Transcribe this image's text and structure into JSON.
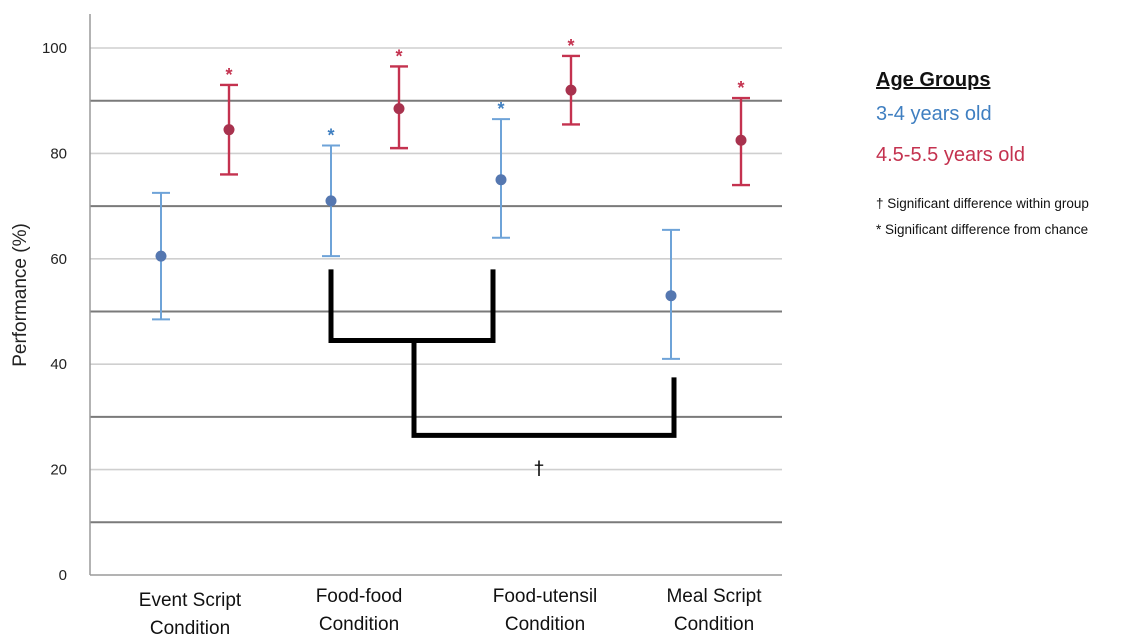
{
  "chart_data": {
    "type": "scatter",
    "subtype": "error-bar",
    "ylabel": "Performance (%)",
    "xlabel": "",
    "ylim": [
      0,
      100
    ],
    "yticks": [
      0,
      20,
      40,
      60,
      80,
      100
    ],
    "ytick_labels": [
      "0",
      "20",
      "40",
      "60",
      "80",
      "100"
    ],
    "major_gridlines": [
      10,
      30,
      50,
      70,
      90
    ],
    "minor_gridlines": [
      20,
      40,
      60,
      80,
      100
    ],
    "categories": [
      [
        "Event Script",
        "Condition"
      ],
      [
        "Food-food",
        "Condition"
      ],
      [
        "Food-utensil",
        "Condition"
      ],
      [
        "Meal Script",
        "Condition"
      ]
    ],
    "series": [
      {
        "name": "3-4 years old",
        "color": "#3f7fc1",
        "values": [
          60.5,
          71,
          75,
          53
        ],
        "err_low": [
          48.5,
          60.5,
          64,
          41
        ],
        "err_high": [
          72.5,
          81.5,
          86.5,
          65.5
        ],
        "significant": [
          false,
          true,
          true,
          false
        ]
      },
      {
        "name": "4.5-5.5 years old",
        "color": "#c4324f",
        "values": [
          84.5,
          88.5,
          92,
          82.5
        ],
        "err_low": [
          76,
          81,
          85.5,
          74
        ],
        "err_high": [
          93,
          96.5,
          98.5,
          90.5
        ],
        "significant": [
          true,
          true,
          true,
          true
        ]
      }
    ],
    "significance_marker": "*",
    "brackets": [
      {
        "from_category": 1,
        "to_category": 2,
        "bar_level": 44.5,
        "leg_top": 58
      },
      {
        "from_category": 1.5,
        "to_category": 3,
        "bar_level": 26.5,
        "leg_top_left": 44.5,
        "leg_top_right": 37.5
      }
    ],
    "bracket_marker": "†",
    "legend": {
      "title": "Age Groups",
      "placement": "right",
      "entries": [
        "3-4 years old",
        "4.5-5.5 years old"
      ],
      "notes": [
        "† Significant difference within group",
        "* Significant difference from chance"
      ]
    }
  }
}
